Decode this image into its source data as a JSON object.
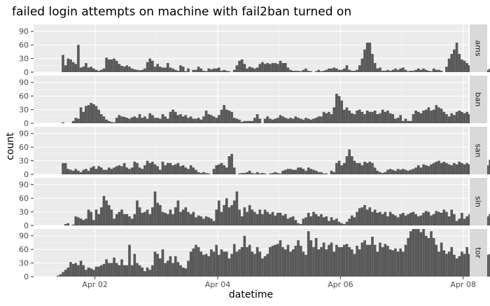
{
  "chart_data": {
    "type": "bar",
    "title": "failed login attempts on machine with fail2ban turned on",
    "xlabel": "datetime",
    "ylabel": "count",
    "x_unit": "hour",
    "x_start": "2019-04-01 08:00",
    "x_ticks": [
      "Apr 02",
      "Apr 04",
      "Apr 06",
      "Apr 08"
    ],
    "xlim": [
      "2019-04-01 00:00",
      "2019-04-08 02:00"
    ],
    "y_ticks": [
      0,
      30,
      60,
      90
    ],
    "ylim": [
      0,
      105
    ],
    "grid": true,
    "facets": [
      {
        "name": "ams",
        "values": [
          0,
          0,
          0,
          38,
          15,
          30,
          28,
          22,
          18,
          60,
          10,
          12,
          20,
          10,
          12,
          8,
          5,
          3,
          5,
          8,
          32,
          28,
          28,
          30,
          25,
          18,
          14,
          12,
          15,
          12,
          8,
          6,
          5,
          4,
          5,
          8,
          22,
          30,
          25,
          12,
          18,
          12,
          10,
          10,
          20,
          10,
          8,
          5,
          3,
          15,
          12,
          2,
          8,
          0,
          5,
          5,
          12,
          8,
          3,
          2,
          8,
          6,
          8,
          8,
          10,
          3,
          5,
          3,
          2,
          0,
          5,
          15,
          25,
          28,
          18,
          8,
          12,
          10,
          8,
          10,
          18,
          22,
          18,
          20,
          18,
          20,
          20,
          18,
          25,
          20,
          20,
          10,
          5,
          3,
          3,
          3,
          2,
          5,
          8,
          3,
          2,
          0,
          2,
          5,
          2,
          3,
          5,
          8,
          8,
          10,
          8,
          5,
          5,
          8,
          15,
          5,
          3,
          3,
          5,
          15,
          30,
          50,
          65,
          65,
          40,
          20,
          8,
          10,
          3,
          3,
          5,
          3,
          5,
          8,
          5,
          8,
          10,
          5,
          2,
          3,
          3,
          5,
          8,
          5,
          8,
          5,
          3,
          2,
          8,
          5,
          5,
          3,
          0,
          12,
          30,
          40,
          50,
          65,
          40,
          28,
          25,
          20,
          15,
          20,
          18,
          10,
          12,
          18,
          5,
          5,
          8,
          12,
          8,
          20,
          5,
          10,
          15,
          12,
          8,
          15,
          8,
          5,
          3,
          2,
          5,
          5,
          3,
          2
        ]
      },
      {
        "name": "ban",
        "values": [
          0,
          0,
          0,
          2,
          0,
          0,
          0,
          5,
          12,
          10,
          35,
          25,
          38,
          40,
          45,
          42,
          38,
          30,
          20,
          15,
          8,
          5,
          3,
          2,
          12,
          18,
          15,
          14,
          12,
          10,
          13,
          15,
          12,
          20,
          12,
          15,
          10,
          22,
          18,
          12,
          12,
          10,
          20,
          15,
          10,
          25,
          30,
          25,
          18,
          20,
          15,
          18,
          12,
          15,
          10,
          10,
          12,
          8,
          15,
          28,
          20,
          18,
          15,
          12,
          18,
          30,
          40,
          30,
          28,
          25,
          12,
          10,
          8,
          3,
          5,
          5,
          5,
          5,
          12,
          20,
          10,
          0,
          10,
          15,
          10,
          8,
          10,
          12,
          18,
          15,
          12,
          10,
          12,
          10,
          15,
          12,
          10,
          8,
          12,
          10,
          8,
          10,
          12,
          15,
          15,
          25,
          22,
          25,
          20,
          35,
          65,
          60,
          50,
          30,
          35,
          28,
          22,
          20,
          28,
          30,
          25,
          20,
          28,
          25,
          25,
          28,
          20,
          22,
          30,
          25,
          28,
          22,
          20,
          10,
          12,
          18,
          5,
          10,
          5,
          5,
          20,
          28,
          25,
          22,
          28,
          30,
          35,
          28,
          30,
          40,
          35,
          32,
          25,
          20,
          15,
          22,
          18,
          25,
          28,
          25,
          22,
          25,
          20,
          15,
          10
        ]
      },
      {
        "name": "san",
        "values": [
          0,
          0,
          0,
          25,
          25,
          12,
          10,
          8,
          12,
          8,
          5,
          10,
          12,
          8,
          15,
          18,
          12,
          18,
          15,
          10,
          10,
          15,
          12,
          15,
          18,
          20,
          18,
          25,
          15,
          12,
          15,
          28,
          25,
          15,
          12,
          20,
          30,
          25,
          28,
          22,
          18,
          10,
          28,
          20,
          25,
          25,
          20,
          22,
          25,
          18,
          20,
          15,
          12,
          20,
          15,
          10,
          5,
          3,
          5,
          3,
          2,
          0,
          12,
          20,
          22,
          25,
          20,
          15,
          40,
          45,
          15,
          0,
          2,
          3,
          3,
          5,
          8,
          3,
          2,
          5,
          2,
          3,
          2,
          0,
          2,
          3,
          5,
          3,
          2,
          8,
          10,
          12,
          12,
          10,
          10,
          15,
          15,
          12,
          8,
          15,
          12,
          10,
          8,
          5,
          5,
          2,
          2,
          0,
          8,
          5,
          25,
          30,
          20,
          25,
          40,
          55,
          40,
          30,
          25,
          25,
          20,
          28,
          25,
          28,
          25,
          15,
          8,
          5,
          3,
          5,
          10,
          12,
          10,
          8,
          12,
          10,
          12,
          10,
          8,
          10,
          12,
          15,
          20,
          15,
          22,
          20,
          18,
          22,
          25,
          28,
          30,
          25,
          28,
          25,
          22,
          20,
          25,
          22,
          28,
          25,
          22,
          25,
          22,
          25,
          20,
          28,
          25,
          22,
          28,
          20,
          32,
          25,
          28,
          22,
          20,
          15,
          25,
          28,
          22,
          20,
          15
        ]
      },
      {
        "name": "sin",
        "values": [
          0,
          0,
          0,
          0,
          3,
          5,
          0,
          2,
          20,
          18,
          15,
          12,
          15,
          35,
          30,
          12,
          35,
          25,
          40,
          65,
          55,
          45,
          35,
          15,
          25,
          30,
          35,
          25,
          25,
          20,
          15,
          25,
          55,
          40,
          28,
          30,
          35,
          25,
          40,
          75,
          50,
          45,
          30,
          28,
          25,
          35,
          25,
          40,
          55,
          30,
          35,
          40,
          30,
          25,
          30,
          18,
          22,
          20,
          15,
          20,
          18,
          15,
          10,
          35,
          55,
          30,
          45,
          60,
          40,
          45,
          55,
          75,
          35,
          20,
          40,
          30,
          45,
          35,
          30,
          25,
          35,
          25,
          35,
          30,
          25,
          30,
          22,
          28,
          28,
          22,
          25,
          15,
          18,
          20,
          12,
          5,
          3,
          15,
          18,
          28,
          20,
          30,
          25,
          20,
          25,
          18,
          20,
          10,
          18,
          12,
          15,
          8,
          5,
          3,
          8,
          15,
          22,
          18,
          30,
          38,
          40,
          45,
          35,
          40,
          30,
          35,
          28,
          30,
          25,
          30,
          20,
          30,
          25,
          22,
          18,
          25,
          28,
          22,
          25,
          28,
          30,
          25,
          20,
          22,
          28,
          32,
          30,
          22,
          25,
          32,
          30,
          28,
          35,
          30,
          20,
          35,
          25,
          10,
          15,
          28,
          15,
          20,
          25,
          30,
          35,
          45,
          30,
          40,
          35,
          20,
          25
        ]
      },
      {
        "name": "tor",
        "values": [
          0,
          2,
          5,
          10,
          15,
          20,
          32,
          28,
          30,
          25,
          35,
          25,
          15,
          20,
          18,
          15,
          22,
          22,
          25,
          28,
          38,
          30,
          30,
          42,
          30,
          25,
          38,
          25,
          25,
          70,
          25,
          50,
          30,
          25,
          20,
          12,
          20,
          15,
          25,
          55,
          50,
          40,
          60,
          30,
          35,
          45,
          30,
          45,
          32,
          25,
          20,
          18,
          35,
          55,
          62,
          70,
          65,
          55,
          48,
          50,
          45,
          60,
          55,
          70,
          48,
          60,
          55,
          55,
          40,
          50,
          72,
          55,
          60,
          65,
          90,
          65,
          70,
          55,
          50,
          65,
          55,
          40,
          45,
          50,
          65,
          68,
          70,
          72,
          80,
          65,
          60,
          70,
          55,
          60,
          68,
          80,
          68,
          55,
          48,
          100,
          80,
          65,
          85,
          60,
          65,
          75,
          60,
          70,
          75,
          55,
          70,
          65,
          65,
          70,
          72,
          65,
          60,
          50,
          68,
          60,
          75,
          80,
          70,
          70,
          88,
          70,
          55,
          75,
          65,
          72,
          68,
          60,
          58,
          62,
          55,
          62,
          55,
          70,
          85,
          100,
          105,
          108,
          105,
          98,
          105,
          90,
          85,
          100,
          85,
          70,
          55,
          75,
          58,
          50,
          55,
          65,
          48,
          40,
          45,
          55,
          50,
          65,
          50,
          60,
          45,
          55,
          65,
          60,
          52,
          48,
          50,
          55,
          65,
          48,
          55,
          45,
          55,
          65,
          65,
          60,
          40
        ]
      }
    ]
  }
}
